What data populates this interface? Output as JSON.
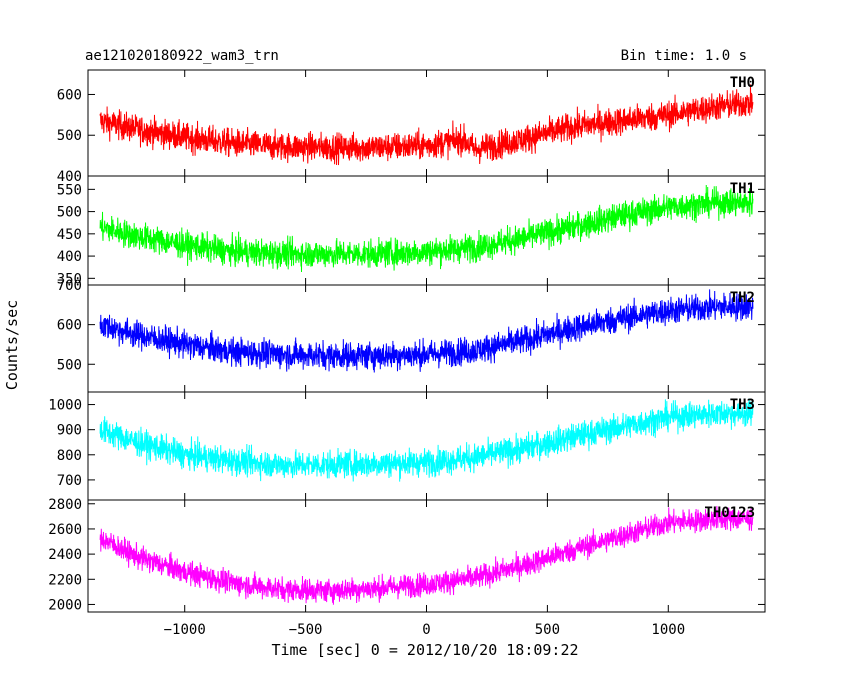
{
  "header": {
    "title": "ae121020180922_wam3_trn",
    "bin_time": "Bin time: 1.0 s"
  },
  "chart_data": {
    "type": "line",
    "xlabel": "Time [sec] 0 = 2012/10/20 18:09:22",
    "ylabel": "Counts/sec",
    "xlim": [
      -1400,
      1400
    ],
    "x_ticks": [
      "−1000",
      "−500",
      "0",
      "500",
      "1000"
    ],
    "x_tick_values": [
      -1000,
      -500,
      0,
      500,
      1000
    ],
    "panels": [
      {
        "name": "TH0",
        "color": "#ff0000",
        "ylim": [
          400,
          660
        ],
        "y_ticks": [
          400,
          500,
          600
        ],
        "x": [
          -1350,
          -1200,
          -1000,
          -800,
          -600,
          -400,
          -200,
          0,
          150,
          200,
          400,
          600,
          800,
          1000,
          1200,
          1350
        ],
        "y": [
          535,
          515,
          495,
          480,
          472,
          470,
          470,
          475,
          490,
          465,
          490,
          520,
          535,
          550,
          570,
          580
        ],
        "spread": 45
      },
      {
        "name": "TH1",
        "color": "#00ff00",
        "ylim": [
          335,
          580
        ],
        "y_ticks": [
          350,
          400,
          450,
          500,
          550
        ],
        "x": [
          -1350,
          -1200,
          -1000,
          -800,
          -600,
          -400,
          -200,
          0,
          200,
          400,
          600,
          800,
          1000,
          1200,
          1350
        ],
        "y": [
          465,
          445,
          425,
          410,
          405,
          405,
          405,
          410,
          420,
          440,
          465,
          490,
          510,
          520,
          520
        ],
        "spread": 40
      },
      {
        "name": "TH2",
        "color": "#0000ff",
        "ylim": [
          430,
          700
        ],
        "y_ticks": [
          500,
          600,
          700
        ],
        "x": [
          -1350,
          -1200,
          -1000,
          -800,
          -600,
          -400,
          -200,
          0,
          200,
          400,
          600,
          800,
          1000,
          1200,
          1350
        ],
        "y": [
          600,
          575,
          550,
          532,
          525,
          522,
          522,
          525,
          535,
          560,
          590,
          615,
          635,
          645,
          645
        ],
        "spread": 45
      },
      {
        "name": "TH3",
        "color": "#00ffff",
        "ylim": [
          620,
          1050
        ],
        "y_ticks": [
          700,
          800,
          900,
          1000
        ],
        "x": [
          -1350,
          -1200,
          -1000,
          -800,
          -600,
          -400,
          -200,
          0,
          200,
          400,
          600,
          800,
          1000,
          1200,
          1350
        ],
        "y": [
          900,
          850,
          800,
          775,
          760,
          760,
          765,
          770,
          790,
          825,
          870,
          910,
          950,
          965,
          965
        ],
        "spread": 70
      },
      {
        "name": "TH0123",
        "color": "#ff00ff",
        "ylim": [
          1940,
          2830
        ],
        "y_ticks": [
          2000,
          2200,
          2400,
          2600,
          2800
        ],
        "x": [
          -1350,
          -1200,
          -1000,
          -800,
          -600,
          -400,
          -200,
          0,
          200,
          400,
          600,
          800,
          1000,
          1200,
          1350
        ],
        "y": [
          2530,
          2380,
          2260,
          2170,
          2120,
          2110,
          2130,
          2160,
          2210,
          2310,
          2430,
          2540,
          2650,
          2680,
          2680
        ],
        "spread": 120
      }
    ]
  }
}
